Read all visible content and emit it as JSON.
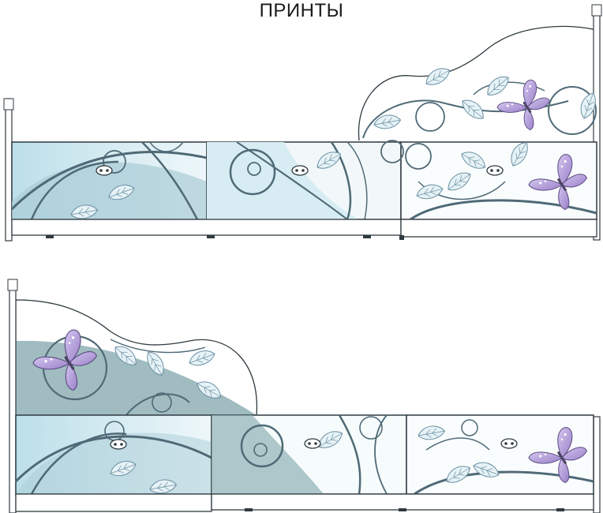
{
  "title": "ПРИНТЫ",
  "colors": {
    "outline": "#2f3a40",
    "panel_light": "#d7ecf3",
    "panel_mid": "#a9ccd6",
    "swirl": "#4f6a76",
    "wave_dark": "#6f9298",
    "leaf_fill": "#e6f2f6",
    "leaf_stroke": "#6a8fa3",
    "butterfly_wing": "#a78fd0",
    "butterfly_wing_light": "#d4c6ef",
    "butterfly_body": "#4b4564"
  },
  "drawings": [
    {
      "name": "bed-view-top",
      "drawers": 3,
      "headboard": "right",
      "icons": [
        "butterfly-icon",
        "butterfly-icon",
        "leaf-icon",
        "swirl-icon",
        "drawer-handle-icon"
      ]
    },
    {
      "name": "bed-view-bottom",
      "drawers": 3,
      "headboard": "left",
      "icons": [
        "butterfly-icon",
        "butterfly-icon",
        "leaf-icon",
        "swirl-icon",
        "drawer-handle-icon"
      ]
    }
  ]
}
